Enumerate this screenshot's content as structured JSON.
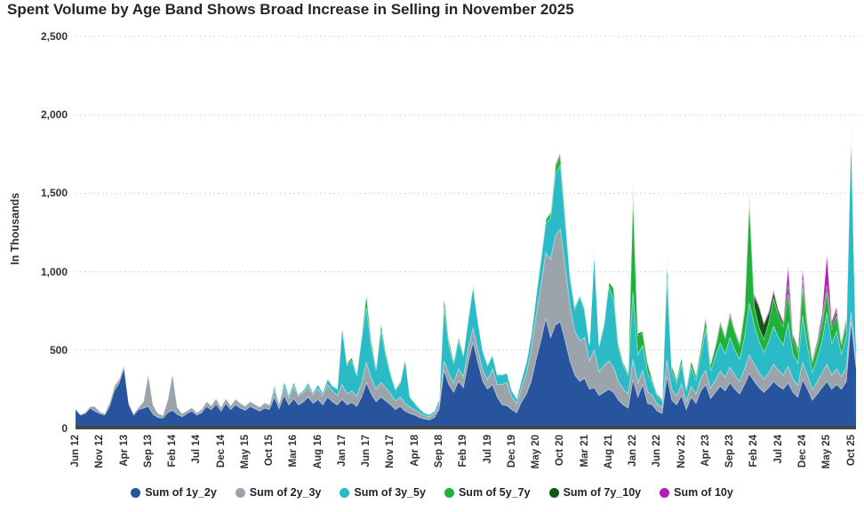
{
  "title": "Spent Volume by Age Band Shows Broad Increase in Selling in November 2025",
  "y_axis": {
    "label": "In Thousands",
    "ticks": [
      {
        "value": 0,
        "label": "0"
      },
      {
        "value": 500,
        "label": "500"
      },
      {
        "value": 1000,
        "label": "1,000"
      },
      {
        "value": 1500,
        "label": "1,500"
      },
      {
        "value": 2000,
        "label": "2,000"
      },
      {
        "value": 2500,
        "label": "2,500"
      }
    ]
  },
  "chart_data": {
    "type": "area",
    "stacked": true,
    "title": "Spent Volume by Age Band Shows Broad Increase in Selling in November 2025",
    "ylabel": "In Thousands",
    "ylim": [
      0,
      2500
    ],
    "grid": "dotted horizontal",
    "legend_position": "bottom",
    "x_start": "Jun 2012",
    "x_end": "Nov 2025",
    "x_interval": "monthly",
    "x_count": 162,
    "x_tick_step": 5,
    "x_tick_labels": [
      "Jun 12",
      "Nov 12",
      "Apr 13",
      "Sep 13",
      "Feb 14",
      "Jul 14",
      "Dec 14",
      "May 15",
      "Oct 15",
      "Mar 16",
      "Aug 16",
      "Jan 17",
      "Jun 17",
      "Nov 17",
      "Apr 18",
      "Sep 18",
      "Feb 19",
      "Jul 19",
      "Dec 19",
      "May 20",
      "Oct 20",
      "Mar 21",
      "Aug 21",
      "Jan 22",
      "Jun 22",
      "Nov 22",
      "Apr 23",
      "Sep 23",
      "Feb 24",
      "Jul 24",
      "Dec 24",
      "May 25",
      "Oct 25"
    ],
    "y_gridlines": [
      500,
      1000,
      1500,
      2000,
      2500
    ],
    "axis_line_color": "#43474c",
    "gridline_color": "#c9c9c9",
    "series": [
      {
        "name": "Sum of 1y_2y",
        "color": "#27549d",
        "values": [
          120,
          85,
          95,
          130,
          110,
          95,
          85,
          140,
          240,
          290,
          385,
          150,
          85,
          120,
          130,
          140,
          90,
          70,
          65,
          100,
          115,
          90,
          75,
          95,
          110,
          85,
          100,
          140,
          120,
          155,
          110,
          160,
          120,
          150,
          130,
          115,
          140,
          125,
          110,
          130,
          120,
          200,
          125,
          210,
          150,
          190,
          150,
          170,
          200,
          160,
          185,
          150,
          200,
          170,
          150,
          185,
          150,
          165,
          140,
          200,
          290,
          220,
          170,
          200,
          175,
          150,
          120,
          140,
          110,
          95,
          85,
          70,
          60,
          55,
          70,
          120,
          370,
          280,
          230,
          300,
          260,
          420,
          550,
          420,
          300,
          250,
          280,
          200,
          150,
          145,
          120,
          100,
          170,
          220,
          300,
          440,
          560,
          700,
          580,
          660,
          680,
          560,
          430,
          340,
          300,
          320,
          250,
          260,
          210,
          230,
          250,
          230,
          180,
          150,
          130,
          310,
          200,
          280,
          160,
          150,
          110,
          95,
          330,
          180,
          150,
          210,
          120,
          200,
          160,
          240,
          280,
          190,
          230,
          270,
          240,
          290,
          250,
          220,
          280,
          350,
          300,
          260,
          230,
          260,
          300,
          270,
          250,
          290,
          230,
          200,
          310,
          250,
          180,
          220,
          260,
          300,
          250,
          280,
          250,
          300,
          680,
          390
        ]
      },
      {
        "name": "Sum of 2y_3y",
        "color": "#9ca4ab",
        "values": [
          8,
          6,
          8,
          10,
          30,
          12,
          10,
          25,
          30,
          25,
          22,
          15,
          10,
          15,
          40,
          210,
          60,
          25,
          18,
          80,
          240,
          45,
          20,
          18,
          22,
          15,
          20,
          30,
          25,
          35,
          25,
          30,
          25,
          35,
          30,
          25,
          30,
          28,
          25,
          30,
          28,
          45,
          30,
          55,
          45,
          80,
          55,
          60,
          70,
          55,
          70,
          60,
          80,
          70,
          60,
          95,
          70,
          75,
          65,
          90,
          130,
          100,
          80,
          95,
          85,
          70,
          55,
          60,
          50,
          40,
          35,
          28,
          22,
          20,
          25,
          35,
          60,
          70,
          60,
          80,
          70,
          90,
          90,
          80,
          70,
          60,
          100,
          80,
          130,
          150,
          80,
          60,
          90,
          130,
          200,
          280,
          350,
          420,
          500,
          570,
          590,
          480,
          350,
          280,
          260,
          260,
          180,
          240,
          150,
          170,
          180,
          160,
          120,
          100,
          90,
          130,
          90,
          90,
          75,
          60,
          45,
          40,
          110,
          70,
          55,
          75,
          50,
          70,
          60,
          80,
          90,
          65,
          80,
          95,
          85,
          100,
          90,
          80,
          100,
          120,
          110,
          95,
          85,
          95,
          110,
          100,
          90,
          105,
          85,
          75,
          110,
          90,
          65,
          80,
          95,
          110,
          90,
          100,
          80,
          90,
          60,
          50
        ]
      },
      {
        "name": "Sum of 3y_5y",
        "color": "#2abbc7",
        "values": [
          2,
          2,
          2,
          3,
          3,
          3,
          2,
          3,
          4,
          4,
          5,
          3,
          2,
          3,
          4,
          6,
          4,
          3,
          3,
          4,
          6,
          4,
          3,
          3,
          4,
          3,
          4,
          5,
          4,
          5,
          4,
          5,
          5,
          6,
          5,
          5,
          6,
          5,
          5,
          6,
          6,
          30,
          10,
          35,
          20,
          25,
          12,
          15,
          20,
          15,
          25,
          20,
          35,
          30,
          40,
          370,
          180,
          190,
          130,
          280,
          350,
          200,
          120,
          330,
          200,
          120,
          70,
          90,
          280,
          60,
          40,
          25,
          15,
          12,
          15,
          25,
          340,
          180,
          120,
          180,
          130,
          180,
          260,
          180,
          120,
          90,
          85,
          60,
          60,
          55,
          40,
          30,
          50,
          70,
          90,
          120,
          160,
          190,
          260,
          390,
          410,
          290,
          180,
          140,
          280,
          170,
          100,
          620,
          160,
          250,
          480,
          430,
          210,
          150,
          120,
          430,
          180,
          160,
          120,
          80,
          50,
          40,
          520,
          110,
          85,
          130,
          70,
          120,
          90,
          140,
          270,
          110,
          150,
          180,
          150,
          190,
          160,
          140,
          200,
          330,
          250,
          200,
          170,
          200,
          240,
          210,
          190,
          280,
          160,
          140,
          300,
          180,
          110,
          150,
          200,
          330,
          200,
          240,
          140,
          200,
          1160,
          85
        ]
      },
      {
        "name": "Sum of 5y_7y",
        "color": "#1fb23a",
        "values": [
          0,
          0,
          0,
          0,
          0,
          0,
          0,
          0,
          0,
          0,
          0,
          0,
          0,
          0,
          0,
          0,
          0,
          0,
          0,
          0,
          0,
          0,
          0,
          0,
          0,
          0,
          0,
          0,
          0,
          0,
          0,
          0,
          0,
          0,
          0,
          0,
          0,
          0,
          0,
          0,
          0,
          0,
          0,
          0,
          0,
          3,
          0,
          0,
          3,
          0,
          4,
          0,
          5,
          4,
          5,
          10,
          15,
          25,
          15,
          25,
          85,
          40,
          20,
          45,
          30,
          15,
          8,
          10,
          12,
          6,
          5,
          4,
          3,
          3,
          3,
          5,
          80,
          40,
          20,
          25,
          15,
          15,
          18,
          12,
          10,
          8,
          10,
          6,
          5,
          5,
          4,
          3,
          5,
          8,
          10,
          15,
          20,
          25,
          30,
          50,
          60,
          40,
          25,
          18,
          12,
          20,
          12,
          25,
          15,
          20,
          25,
          70,
          30,
          20,
          15,
          600,
          120,
          80,
          60,
          20,
          15,
          12,
          110,
          35,
          25,
          40,
          20,
          40,
          30,
          50,
          70,
          40,
          60,
          120,
          100,
          140,
          110,
          90,
          160,
          640,
          120,
          90,
          80,
          120,
          180,
          140,
          120,
          180,
          90,
          70,
          180,
          100,
          60,
          80,
          110,
          130,
          90,
          100,
          60,
          80,
          35,
          20
        ]
      },
      {
        "name": "Sum of 7y_10y",
        "color": "#14571a",
        "values": [
          0,
          0,
          0,
          0,
          0,
          0,
          0,
          0,
          0,
          0,
          0,
          0,
          0,
          0,
          0,
          0,
          0,
          0,
          0,
          0,
          0,
          0,
          0,
          0,
          0,
          0,
          0,
          0,
          0,
          0,
          0,
          0,
          0,
          0,
          0,
          0,
          0,
          0,
          0,
          0,
          0,
          0,
          0,
          0,
          0,
          0,
          0,
          0,
          0,
          0,
          0,
          0,
          0,
          0,
          0,
          0,
          0,
          0,
          0,
          0,
          7,
          5,
          0,
          5,
          0,
          0,
          0,
          0,
          0,
          0,
          0,
          0,
          0,
          0,
          0,
          0,
          0,
          0,
          0,
          0,
          0,
          0,
          0,
          0,
          0,
          0,
          0,
          0,
          0,
          0,
          0,
          0,
          0,
          0,
          0,
          0,
          0,
          0,
          10,
          15,
          15,
          10,
          6,
          0,
          0,
          0,
          0,
          0,
          0,
          0,
          0,
          8,
          0,
          0,
          0,
          70,
          15,
          10,
          8,
          0,
          0,
          0,
          15,
          5,
          0,
          5,
          0,
          5,
          0,
          8,
          10,
          6,
          8,
          15,
          12,
          18,
          14,
          12,
          20,
          40,
          60,
          130,
          100,
          60,
          40,
          30,
          25,
          60,
          25,
          20,
          50,
          30,
          15,
          20,
          30,
          40,
          25,
          30,
          15,
          20,
          10,
          5
        ]
      },
      {
        "name": "Sum of 10y",
        "color": "#b31cbc",
        "values": [
          0,
          0,
          0,
          0,
          0,
          0,
          0,
          0,
          0,
          0,
          0,
          0,
          0,
          0,
          0,
          0,
          0,
          0,
          0,
          0,
          0,
          0,
          0,
          0,
          0,
          0,
          0,
          0,
          0,
          0,
          0,
          0,
          0,
          0,
          0,
          0,
          0,
          0,
          0,
          0,
          0,
          0,
          0,
          0,
          0,
          0,
          0,
          0,
          0,
          0,
          0,
          0,
          0,
          0,
          0,
          0,
          0,
          0,
          0,
          0,
          0,
          0,
          0,
          0,
          0,
          0,
          0,
          0,
          0,
          0,
          0,
          0,
          0,
          0,
          0,
          0,
          0,
          0,
          0,
          0,
          0,
          0,
          0,
          0,
          0,
          0,
          0,
          0,
          0,
          0,
          0,
          0,
          0,
          0,
          0,
          0,
          0,
          0,
          0,
          0,
          0,
          0,
          0,
          0,
          0,
          0,
          0,
          0,
          0,
          0,
          0,
          0,
          0,
          0,
          0,
          20,
          0,
          0,
          0,
          0,
          0,
          0,
          5,
          0,
          0,
          0,
          0,
          0,
          0,
          0,
          0,
          6,
          8,
          5,
          4,
          6,
          5,
          4,
          8,
          15,
          18,
          12,
          10,
          12,
          15,
          12,
          10,
          120,
          15,
          10,
          70,
          20,
          10,
          15,
          40,
          200,
          30,
          25,
          10,
          15,
          5,
          5
        ]
      }
    ]
  }
}
